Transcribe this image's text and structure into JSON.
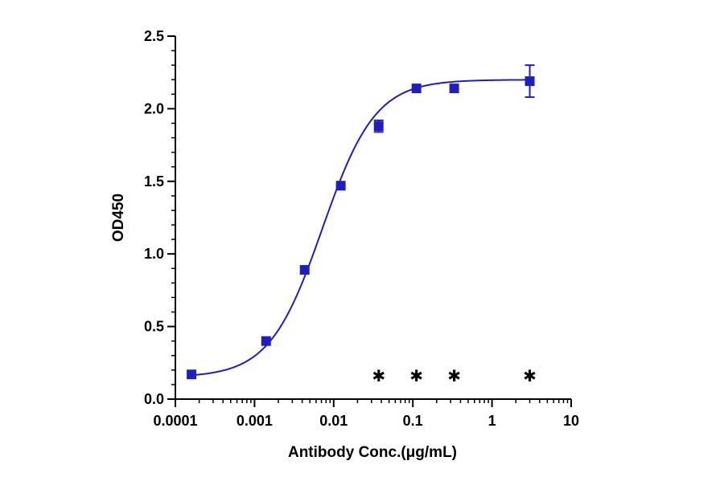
{
  "chart_data": {
    "type": "scatter",
    "xscale": "log",
    "xlabel": "Antibody Conc.(μg/mL)",
    "ylabel": "OD450",
    "xlim": [
      0.0001,
      10
    ],
    "ylim": [
      0,
      2.5
    ],
    "xticks": [
      {
        "value": 0.0001,
        "label": "0.0001"
      },
      {
        "value": 0.001,
        "label": "0.001"
      },
      {
        "value": 0.01,
        "label": "0.01"
      },
      {
        "value": 0.1,
        "label": "0.1"
      },
      {
        "value": 1,
        "label": "1"
      },
      {
        "value": 10,
        "label": "10"
      }
    ],
    "yticks": [
      {
        "value": 0.0,
        "label": "0.0"
      },
      {
        "value": 0.5,
        "label": "0.5"
      },
      {
        "value": 1.0,
        "label": "1.0"
      },
      {
        "value": 1.5,
        "label": "1.5"
      },
      {
        "value": 2.0,
        "label": "2.0"
      },
      {
        "value": 2.5,
        "label": "2.5"
      }
    ],
    "grid": false,
    "series": [
      {
        "color": "#1f1fbf",
        "marker": "square",
        "x": [
          0.00016,
          0.0014,
          0.0043,
          0.0123,
          0.037,
          0.111,
          0.333,
          3.0
        ],
        "y": [
          0.17,
          0.4,
          0.89,
          1.47,
          1.88,
          2.14,
          2.14,
          2.19
        ],
        "error": [
          0.0,
          0.0,
          0.0,
          0.0,
          0.04,
          0.0,
          0.0,
          0.11
        ]
      }
    ],
    "fit": {
      "model": "4PL",
      "bottom": 0.15,
      "top": 2.2,
      "ec50": 0.0072,
      "hill": 1.3,
      "color": "#1f1fbf"
    },
    "annotations": [
      {
        "glyph": "✱",
        "x": 0.037,
        "y": 0.16
      },
      {
        "glyph": "✱",
        "x": 0.111,
        "y": 0.16
      },
      {
        "glyph": "✱",
        "x": 0.333,
        "y": 0.16
      },
      {
        "glyph": "✱",
        "x": 3.0,
        "y": 0.16
      }
    ]
  }
}
